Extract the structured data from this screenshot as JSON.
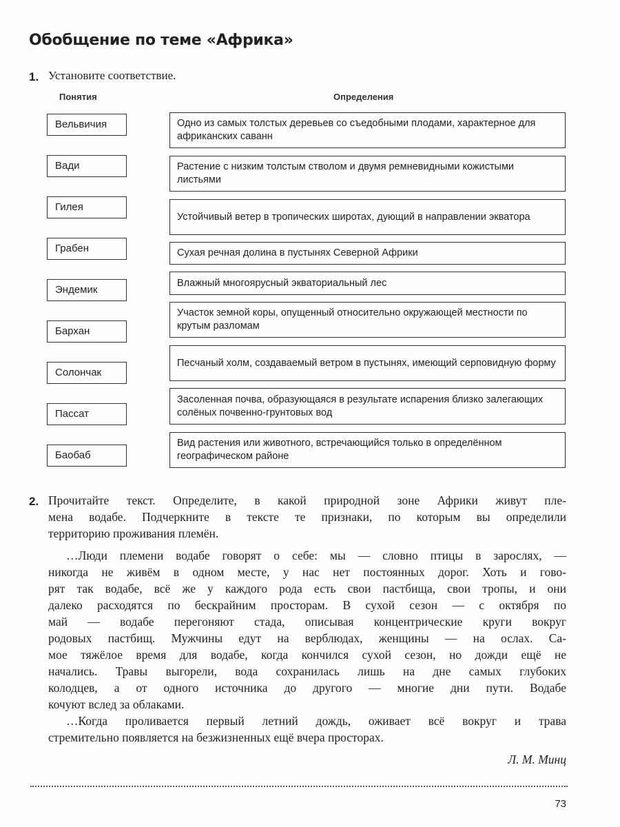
{
  "title": "Обобщение по теме «Африка»",
  "task1": {
    "number": "1.",
    "prompt": "Установите соответствие.",
    "col_terms": "Понятия",
    "col_defs": "Определения",
    "terms": [
      "Вельвичия",
      "Вади",
      "Гилея",
      "Грабен",
      "Эндемик",
      "Бархан",
      "Солончак",
      "Пассат",
      "Баобаб"
    ],
    "definitions": [
      "Одно из самых толстых деревьев со съедобными плодами, характерное для африканских саванн",
      "Растение с низким толстым стволом и двумя ремневидными кожистыми листьями",
      "Устойчивый ветер в тропических широтах, дующий в направлении экватора",
      "Сухая речная долина в пустынях Северной Африки",
      "Влажный многоярусный экваториальный лес",
      "Участок земной коры, опущенный относительно окружающей местности по крутым разломам",
      "Песчаный холм, создаваемый ветром в пустынях, имеющий серповидную форму",
      "Засоленная почва, образующаяся в результате испарения близко залегающих солёных почвенно-грунтовых вод",
      "Вид растения или животного, встречающийся только в определённом географическом районе"
    ]
  },
  "task2": {
    "number": "2.",
    "prompt_lines": [
      "Прочитайте текст. Определите, в какой природной зоне Африки живут пле-",
      "мена водабе. Подчеркните в тексте те признаки, по которым вы определили",
      "территорию проживания племён."
    ],
    "text_lines": [
      "…Люди племени водабе говорят о себе: мы — словно птицы в зарослях, —",
      "никогда не живём в одном месте, у нас нет постоянных дорог. Хоть и гово-",
      "рят так водабе, всё же у каждого рода есть свои пастбища, свои тропы, и они",
      "далеко расходятся по бескрайним просторам. В сухой сезон — с октября по",
      "май — водабе перегоняют стада, описывая концентрические круги вокруг",
      "родовых пастбищ. Мужчины едут на верблюдах, женщины — на ослах. Са-",
      "мое тяжёлое время для водабе, когда кончился сухой сезон, но дожди ещё не",
      "начались. Травы выгорели, вода сохранилась лишь на дне самых глубоких",
      "колодцев, а от одного источника до другого — многие дни пути. Водабе",
      "кочуют вслед за облаками.",
      "…Когда проливается первый летний дождь, оживает всё вокруг и трава",
      "стремительно появляется на безжизненных ещё вчера просторах."
    ],
    "author": "Л. М. Минц"
  },
  "page_number": "73"
}
